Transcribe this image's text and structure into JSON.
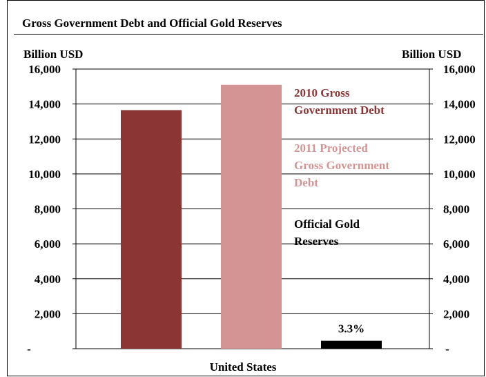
{
  "chart_data": {
    "type": "bar",
    "title": "Gross Government Debt and Official Gold Reserves",
    "ylabel_left": "Billion USD",
    "ylabel_right": "Billion USD",
    "categories": [
      "United States"
    ],
    "ylim": [
      0,
      16000
    ],
    "y_ticks": [
      0,
      2000,
      4000,
      6000,
      8000,
      10000,
      12000,
      14000,
      16000
    ],
    "y_tick_labels": [
      "-",
      "2,000",
      "4,000",
      "6,000",
      "8,000",
      "10,000",
      "12,000",
      "14,000",
      "16,000"
    ],
    "grid": true,
    "series": [
      {
        "name": "2010 Gross Government Debt",
        "values": [
          13650
        ],
        "color": "#8b3535"
      },
      {
        "name": "2011 Projected Gross Government Debt",
        "values": [
          15100
        ],
        "color": "#d49494"
      },
      {
        "name": "Official Gold Reserves",
        "values": [
          450
        ],
        "color": "#000000"
      }
    ],
    "annotations": [
      {
        "series": "Official Gold Reserves",
        "text": "3.3%"
      }
    ],
    "legend": {
      "placement": "right",
      "entries": [
        {
          "lines": [
            "2010 Gross",
            "Government Debt"
          ],
          "color": "#8b3535"
        },
        {
          "lines": [
            "2011 Projected",
            "Gross Government",
            "Debt"
          ],
          "color": "#d49494"
        },
        {
          "lines": [
            "Official Gold",
            "Reserves"
          ],
          "color": "#000000"
        }
      ]
    }
  }
}
